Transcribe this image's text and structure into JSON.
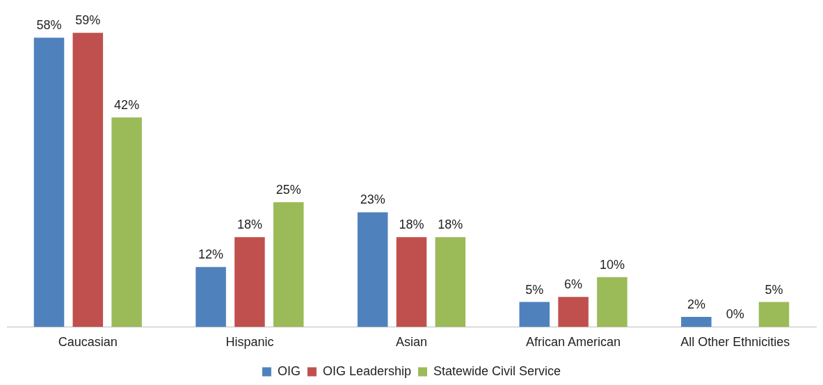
{
  "chart_data": {
    "type": "bar",
    "categories": [
      "Caucasian",
      "Hispanic",
      "Asian",
      "African American",
      "All Other Ethnicities"
    ],
    "series": [
      {
        "name": "OIG",
        "color": "#4f81bd",
        "values": [
          58,
          12,
          23,
          5,
          2
        ],
        "value_labels": [
          "58%",
          "12%",
          "23%",
          "5%",
          "2%"
        ]
      },
      {
        "name": "OIG Leadership",
        "color": "#c0504d",
        "values": [
          59,
          18,
          18,
          6,
          0
        ],
        "value_labels": [
          "59%",
          "18%",
          "18%",
          "6%",
          "0%"
        ]
      },
      {
        "name": "Statewide Civil Service",
        "color": "#9bbb59",
        "values": [
          42,
          25,
          18,
          10,
          5
        ],
        "value_labels": [
          "42%",
          "25%",
          "18%",
          "10%",
          "5%"
        ]
      }
    ],
    "legend": "bottom",
    "grid": false
  }
}
